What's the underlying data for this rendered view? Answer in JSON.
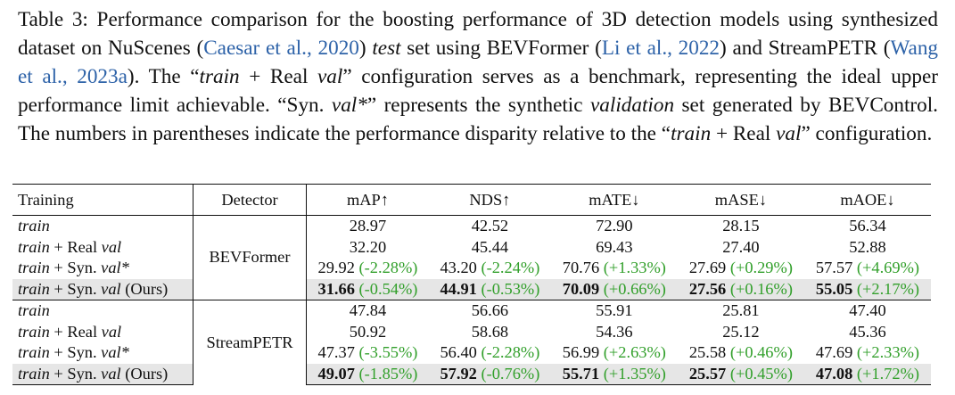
{
  "caption": {
    "label": "Table 3:",
    "p1": " Performance comparison for the boosting performance of 3D detection models using synthesized dataset on NuScenes (",
    "cite1": "Caesar et al., 2020",
    "p2": ") ",
    "p3_i": "test",
    "p4": " set using BEVFormer (",
    "cite2": "Li et al., 2022",
    "p5": ") and StreamPETR (",
    "cite3": "Wang et al., 2023a",
    "p6": "). The “",
    "p7_i": "train",
    "p8": " + Real ",
    "p9_i": "val",
    "p10": "” configuration serves as a benchmark, representing the ideal upper performance limit achievable. “Syn. ",
    "p11_i": "val*",
    "p12": "” represents the synthetic ",
    "p13_i": "validation",
    "p14": " set generated by BEVControl. The numbers in parentheses indicate the performance disparity relative to the “",
    "p15_i": "train",
    "p16": " + Real ",
    "p17_i": "val",
    "p18": "” configuration."
  },
  "headers": [
    "Training",
    "Detector",
    "mAP↑",
    "NDS↑",
    "mATE↓",
    "mASE↓",
    "mAOE↓"
  ],
  "groups": [
    {
      "detector": "BEVFormer",
      "rows": [
        {
          "t_i": "train",
          "t_rest": "",
          "t_i2": "",
          "t_tail": "",
          "cells": [
            [
              "28.97",
              ""
            ],
            [
              "42.52",
              ""
            ],
            [
              "72.90",
              ""
            ],
            [
              "28.15",
              ""
            ],
            [
              "56.34",
              ""
            ]
          ]
        },
        {
          "t_i": "train",
          "t_rest": " + Real ",
          "t_i2": "val",
          "t_tail": "",
          "cells": [
            [
              "32.20",
              ""
            ],
            [
              "45.44",
              ""
            ],
            [
              "69.43",
              ""
            ],
            [
              "27.40",
              ""
            ],
            [
              "52.88",
              ""
            ]
          ]
        },
        {
          "t_i": "train",
          "t_rest": " + Syn. ",
          "t_i2": "val*",
          "t_tail": "",
          "cells": [
            [
              "29.92",
              "(-2.28%)"
            ],
            [
              "43.20",
              "(-2.24%)"
            ],
            [
              "70.76",
              "(+1.33%)"
            ],
            [
              "27.69",
              "(+0.29%)"
            ],
            [
              "57.57",
              "(+4.69%)"
            ]
          ]
        },
        {
          "t_i": "train",
          "t_rest": " + Syn. ",
          "t_i2": "val",
          "t_tail": " (Ours)",
          "cells": [
            [
              "31.66",
              "(-0.54%)"
            ],
            [
              "44.91",
              "(-0.53%)"
            ],
            [
              "70.09",
              "(+0.66%)"
            ],
            [
              "27.56",
              "(+0.16%)"
            ],
            [
              "55.05",
              "(+2.17%)"
            ]
          ]
        }
      ]
    },
    {
      "detector": "StreamPETR",
      "rows": [
        {
          "t_i": "train",
          "t_rest": "",
          "t_i2": "",
          "t_tail": "",
          "cells": [
            [
              "47.84",
              ""
            ],
            [
              "56.66",
              ""
            ],
            [
              "55.91",
              ""
            ],
            [
              "25.81",
              ""
            ],
            [
              "47.40",
              ""
            ]
          ]
        },
        {
          "t_i": "train",
          "t_rest": " + Real ",
          "t_i2": "val",
          "t_tail": "",
          "cells": [
            [
              "50.92",
              ""
            ],
            [
              "58.68",
              ""
            ],
            [
              "54.36",
              ""
            ],
            [
              "25.12",
              ""
            ],
            [
              "45.36",
              ""
            ]
          ]
        },
        {
          "t_i": "train",
          "t_rest": " + Syn. ",
          "t_i2": "val*",
          "t_tail": "",
          "cells": [
            [
              "47.37",
              "(-3.55%)"
            ],
            [
              "56.40",
              "(-2.28%)"
            ],
            [
              "56.99",
              "(+2.63%)"
            ],
            [
              "25.58",
              "(+0.46%)"
            ],
            [
              "47.69",
              "(+2.33%)"
            ]
          ]
        },
        {
          "t_i": "train",
          "t_rest": " + Syn. ",
          "t_i2": "val",
          "t_tail": " (Ours)",
          "cells": [
            [
              "49.07",
              "(-1.85%)"
            ],
            [
              "57.92",
              "(-0.76%)"
            ],
            [
              "55.71",
              "(+1.35%)"
            ],
            [
              "25.57",
              "(+0.45%)"
            ],
            [
              "47.08",
              "(+1.72%)"
            ]
          ]
        }
      ]
    }
  ]
}
